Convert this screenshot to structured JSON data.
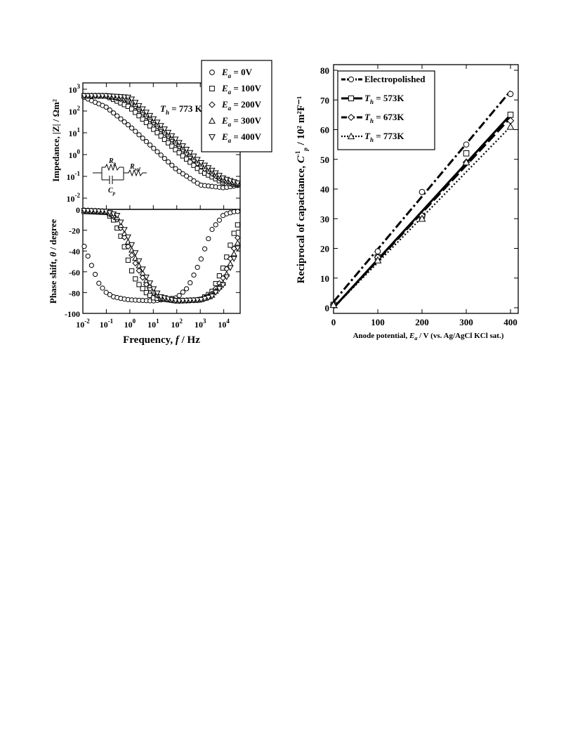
{
  "chart_data": [
    {
      "type": "scatter",
      "panel": "impedance",
      "ylabel": "Impedance, |Z| / Ωm²",
      "xscale": "log",
      "yscale": "log",
      "xlim": [
        0.01,
        50000
      ],
      "ylim": [
        0.01,
        1000
      ],
      "x_ticks": [
        {
          "base": "10",
          "exp": "-2"
        },
        {
          "base": "10",
          "exp": "-1"
        },
        {
          "base": "10",
          "exp": "0"
        },
        {
          "base": "10",
          "exp": "1"
        },
        {
          "base": "10",
          "exp": "2"
        },
        {
          "base": "10",
          "exp": "3"
        },
        {
          "base": "10",
          "exp": "4"
        }
      ],
      "y_ticks": [
        {
          "base": "10",
          "exp": "-2"
        },
        {
          "base": "10",
          "exp": "-1"
        },
        {
          "base": "10",
          "exp": "0"
        },
        {
          "base": "10",
          "exp": "1"
        },
        {
          "base": "10",
          "exp": "2"
        },
        {
          "base": "10",
          "exp": "3"
        }
      ],
      "annotation": {
        "symbol": "T",
        "sub": "h",
        "text": " = 773 K"
      },
      "circuit_labels": {
        "rp_main": "R",
        "rp_sub": "p",
        "rsol_main": "R",
        "rsol_sub": "sol",
        "cp_main": "C",
        "cp_sub": "p"
      },
      "legend_position": "top-right",
      "series": [
        {
          "name_var": "E",
          "name_sub": "a",
          "name_rest": "= 0V",
          "marker": "circle",
          "x": [
            0.01,
            0.1,
            1,
            10,
            100,
            1000,
            10000,
            50000
          ],
          "y": [
            450,
            150,
            20,
            2,
            0.2,
            0.04,
            0.03,
            0.04
          ]
        },
        {
          "name_var": "E",
          "name_sub": "a",
          "name_rest": "= 100V",
          "marker": "square",
          "x": [
            0.01,
            0.1,
            1,
            10,
            100,
            1000,
            10000,
            50000
          ],
          "y": [
            500,
            490,
            150,
            15,
            1.5,
            0.18,
            0.05,
            0.04
          ]
        },
        {
          "name_var": "E",
          "name_sub": "a",
          "name_rest": "= 200V",
          "marker": "diamond",
          "x": [
            0.01,
            0.1,
            1,
            10,
            100,
            1000,
            10000,
            50000
          ],
          "y": [
            500,
            500,
            280,
            30,
            3,
            0.3,
            0.06,
            0.04
          ]
        },
        {
          "name_var": "E",
          "name_sub": "a",
          "name_rest": "= 300V",
          "marker": "triangle-up",
          "x": [
            0.01,
            0.1,
            1,
            10,
            100,
            1000,
            10000,
            50000
          ],
          "y": [
            500,
            500,
            350,
            38,
            3.8,
            0.4,
            0.07,
            0.045
          ]
        },
        {
          "name_var": "E",
          "name_sub": "a",
          "name_rest": "= 400V",
          "marker": "triangle-down",
          "x": [
            0.01,
            0.1,
            1,
            10,
            100,
            1000,
            10000,
            50000
          ],
          "y": [
            500,
            500,
            420,
            45,
            4.5,
            0.45,
            0.08,
            0.045
          ]
        }
      ]
    },
    {
      "type": "scatter",
      "panel": "phase",
      "ylabel_pre": "Phase shift, ",
      "ylabel_symbol": "θ",
      "ylabel_post": " / degree",
      "xlabel_pre": "Frequency, ",
      "xlabel_symbol": "f",
      "xlabel_post": " / Hz",
      "xscale": "log",
      "xlim": [
        0.01,
        50000
      ],
      "ylim": [
        -100,
        0
      ],
      "x_ticks": [
        {
          "base": "10",
          "exp": "-2"
        },
        {
          "base": "10",
          "exp": "-1"
        },
        {
          "base": "10",
          "exp": "0"
        },
        {
          "base": "10",
          "exp": "1"
        },
        {
          "base": "10",
          "exp": "2"
        },
        {
          "base": "10",
          "exp": "3"
        },
        {
          "base": "10",
          "exp": "4"
        }
      ],
      "y_ticks": [
        "0",
        "-20",
        "-40",
        "-60",
        "-80",
        "-100"
      ],
      "series": [
        {
          "marker": "circle",
          "x": [
            0.01,
            0.02,
            0.05,
            0.1,
            0.2,
            0.5,
            1,
            10,
            100,
            300,
            1000,
            3000,
            10000,
            30000,
            50000
          ],
          "y": [
            -32,
            -50,
            -72,
            -80,
            -84,
            -86,
            -87,
            -88,
            -85,
            -75,
            -50,
            -20,
            -5,
            -2,
            -2
          ]
        },
        {
          "marker": "square",
          "x": [
            0.01,
            0.1,
            0.2,
            0.5,
            1,
            2,
            5,
            10,
            100,
            1000,
            3000,
            10000,
            30000,
            50000
          ],
          "y": [
            -2,
            -3,
            -10,
            -30,
            -55,
            -70,
            -80,
            -85,
            -88,
            -87,
            -80,
            -55,
            -20,
            -10
          ]
        },
        {
          "marker": "diamond",
          "x": [
            0.01,
            0.1,
            0.3,
            1,
            2,
            5,
            10,
            20,
            100,
            1000,
            3000,
            10000,
            30000,
            50000
          ],
          "y": [
            -1,
            -2,
            -10,
            -40,
            -55,
            -72,
            -80,
            -85,
            -88,
            -87,
            -82,
            -65,
            -35,
            -20
          ]
        },
        {
          "marker": "triangle-up",
          "x": [
            0.01,
            0.1,
            0.3,
            1,
            2,
            5,
            10,
            20,
            100,
            1000,
            3000,
            10000,
            30000,
            50000
          ],
          "y": [
            -1,
            -2,
            -8,
            -35,
            -50,
            -68,
            -78,
            -85,
            -88,
            -87,
            -83,
            -70,
            -40,
            -25
          ]
        },
        {
          "marker": "triangle-down",
          "x": [
            0.01,
            0.1,
            0.3,
            1,
            2,
            5,
            10,
            20,
            100,
            1000,
            3000,
            10000,
            30000,
            50000
          ],
          "y": [
            -1,
            -2,
            -6,
            -30,
            -45,
            -65,
            -76,
            -84,
            -88,
            -87,
            -84,
            -72,
            -45,
            -30
          ]
        }
      ]
    },
    {
      "type": "line",
      "panel": "capacitance",
      "ylabel": "Reciprocal of capacitance,",
      "ylabel_units": "/   10² m²F⁻¹",
      "ylabel_sym_main": "C",
      "ylabel_sym_sub": "p",
      "ylabel_sym_sup": "-1",
      "xlabel_pre": "Anode potential, ",
      "xlabel_sym": "E",
      "xlabel_sub": "a",
      "xlabel_post": " / V (vs. Ag/AgCl KCl sat.)",
      "xlim": [
        0,
        400
      ],
      "ylim": [
        0,
        80
      ],
      "x_ticks": [
        "0",
        "100",
        "200",
        "300",
        "400"
      ],
      "y_ticks": [
        "0",
        "10",
        "20",
        "30",
        "40",
        "50",
        "60",
        "70",
        "80"
      ],
      "legend_position": "top-left",
      "series": [
        {
          "name": "Electropolished",
          "marker": "circle",
          "line": "dash-dot",
          "x": [
            0,
            100,
            200,
            300,
            400
          ],
          "y": [
            1,
            19,
            39,
            55,
            72
          ],
          "fit": [
            [
              0,
              2
            ],
            [
              400,
              73
            ]
          ]
        },
        {
          "name_var": "T",
          "name_sub": "h",
          "name_rest": "= 573K",
          "marker": "square",
          "line": "solid",
          "x": [
            0,
            100,
            200,
            300,
            400
          ],
          "y": [
            1,
            17,
            31,
            52,
            65
          ],
          "fit": [
            [
              0,
              0
            ],
            [
              400,
              65
            ]
          ]
        },
        {
          "name_var": "T",
          "name_sub": "h",
          "name_rest": "= 673K",
          "marker": "diamond",
          "line": "long-dash",
          "x": [
            0,
            100,
            200,
            300,
            400
          ],
          "y": [
            1,
            17,
            31,
            49,
            63
          ],
          "fit": [
            [
              0,
              0
            ],
            [
              400,
              64
            ]
          ]
        },
        {
          "name_var": "T",
          "name_sub": "h",
          "name_rest": "= 773K",
          "marker": "triangle-up",
          "line": "dotted",
          "x": [
            0,
            100,
            200,
            300,
            400
          ],
          "y": [
            1,
            16,
            30,
            49,
            61
          ],
          "fit": [
            [
              0,
              0
            ],
            [
              400,
              61
            ]
          ]
        }
      ]
    }
  ]
}
